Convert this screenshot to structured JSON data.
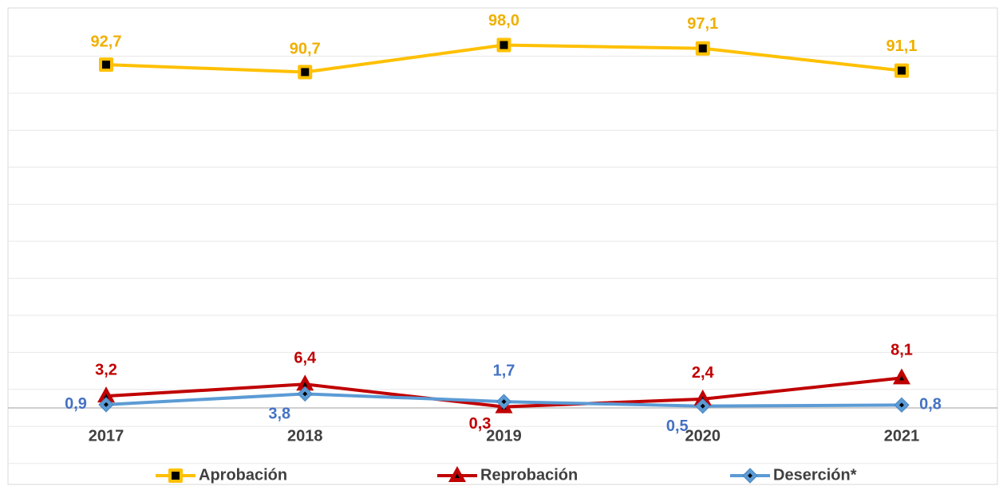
{
  "chart_data": {
    "type": "line",
    "categories": [
      "2017",
      "2018",
      "2019",
      "2020",
      "2021"
    ],
    "series": [
      {
        "name": "Aprobación",
        "color": "#FFC000",
        "label_color": "#F0B000",
        "marker": "square",
        "values": [
          92.7,
          90.7,
          98.0,
          97.1,
          91.1
        ],
        "value_labels": [
          "92,7",
          "90,7",
          "98,0",
          "97,1",
          "91,1"
        ]
      },
      {
        "name": "Reprobación",
        "color": "#C00000",
        "label_color": "#C00000",
        "marker": "triangle",
        "values": [
          3.2,
          6.4,
          0.3,
          2.4,
          8.1
        ],
        "value_labels": [
          "3,2",
          "6,4",
          "0,3",
          "2,4",
          "8,1"
        ]
      },
      {
        "name": "Deserción*",
        "color": "#5B9BD5",
        "label_color": "#4472C4",
        "marker": "diamond",
        "values": [
          0.9,
          3.8,
          1.7,
          0.5,
          0.8
        ],
        "value_labels": [
          "0,9",
          "3,8",
          "1,7",
          "0,5",
          "0,8"
        ]
      }
    ],
    "ylim": [
      -20,
      105
    ],
    "yticks": [
      -15,
      -5,
      5,
      15,
      25,
      35,
      45,
      55,
      65,
      75,
      85,
      95
    ],
    "grid": true,
    "legend": "bottom"
  }
}
